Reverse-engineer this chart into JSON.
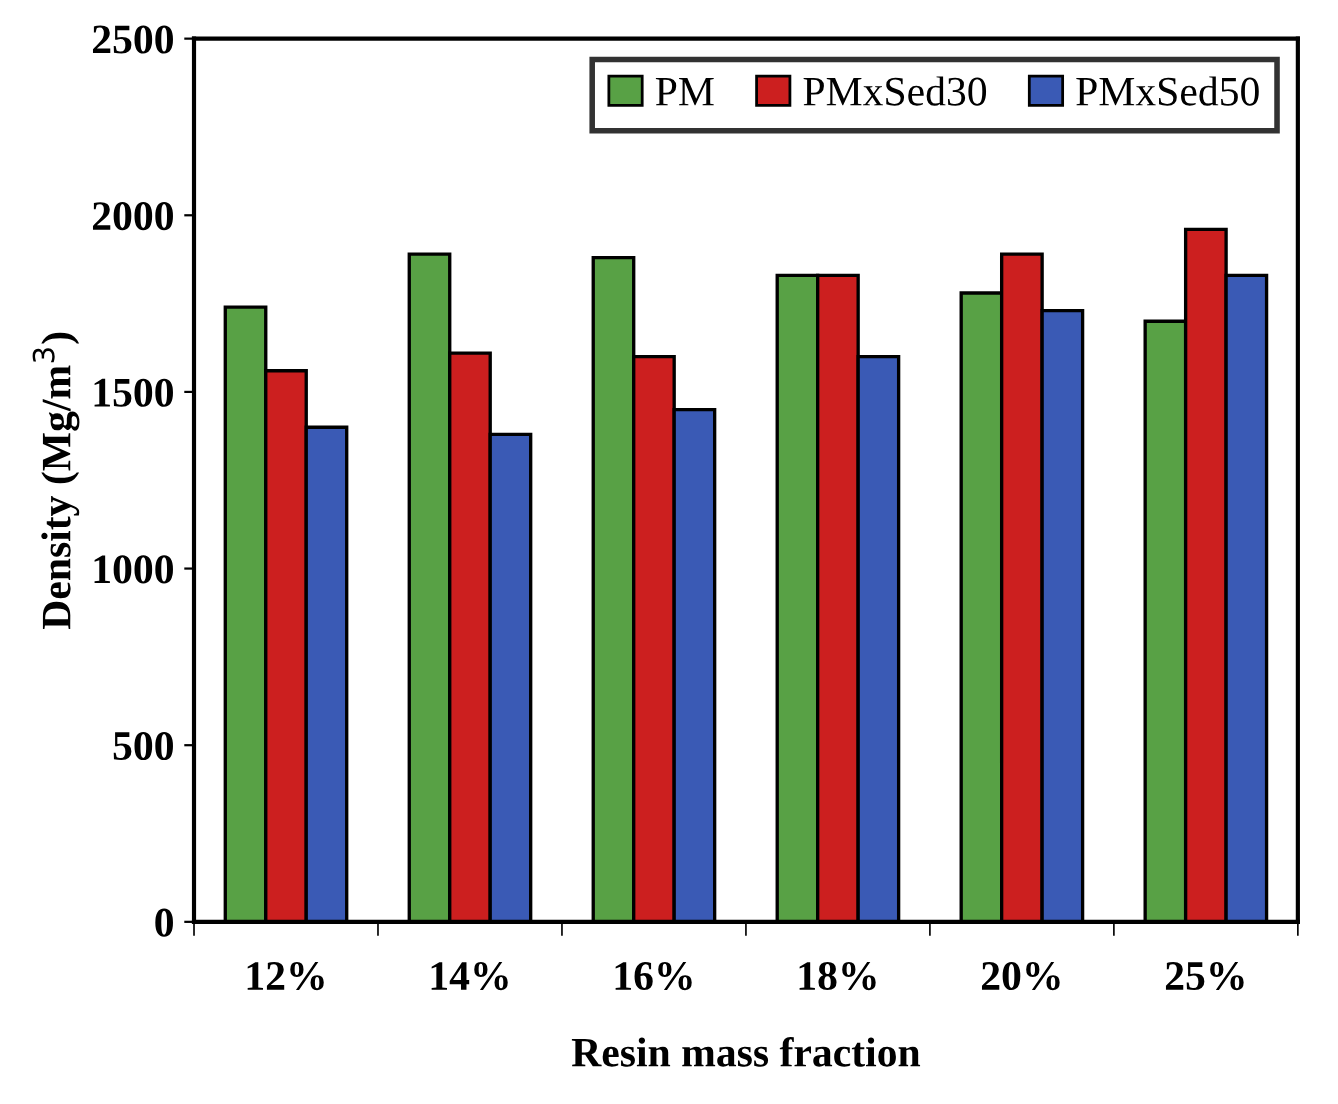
{
  "chart_data": {
    "type": "bar",
    "xlabel": "Resin mass fraction",
    "ylabel": "Density (Mg/m$^{3}$)",
    "categories": [
      "12%",
      "14%",
      "16%",
      "18%",
      "20%",
      "25%"
    ],
    "series": [
      {
        "name": "PM",
        "color": "#58a145",
        "values": [
          1740,
          1890,
          1880,
          1830,
          1780,
          1700
        ]
      },
      {
        "name": "PMxSed30",
        "color": "#cc1f1f",
        "values": [
          1560,
          1610,
          1600,
          1830,
          1890,
          1960
        ]
      },
      {
        "name": "PMxSed50",
        "color": "#3a5ab5",
        "values": [
          1400,
          1380,
          1450,
          1600,
          1730,
          1830
        ]
      }
    ],
    "ylim": [
      0,
      2500
    ],
    "yticks": [
      0,
      500,
      1000,
      1500,
      2000,
      2500
    ],
    "grid": false,
    "legend": "top right"
  }
}
